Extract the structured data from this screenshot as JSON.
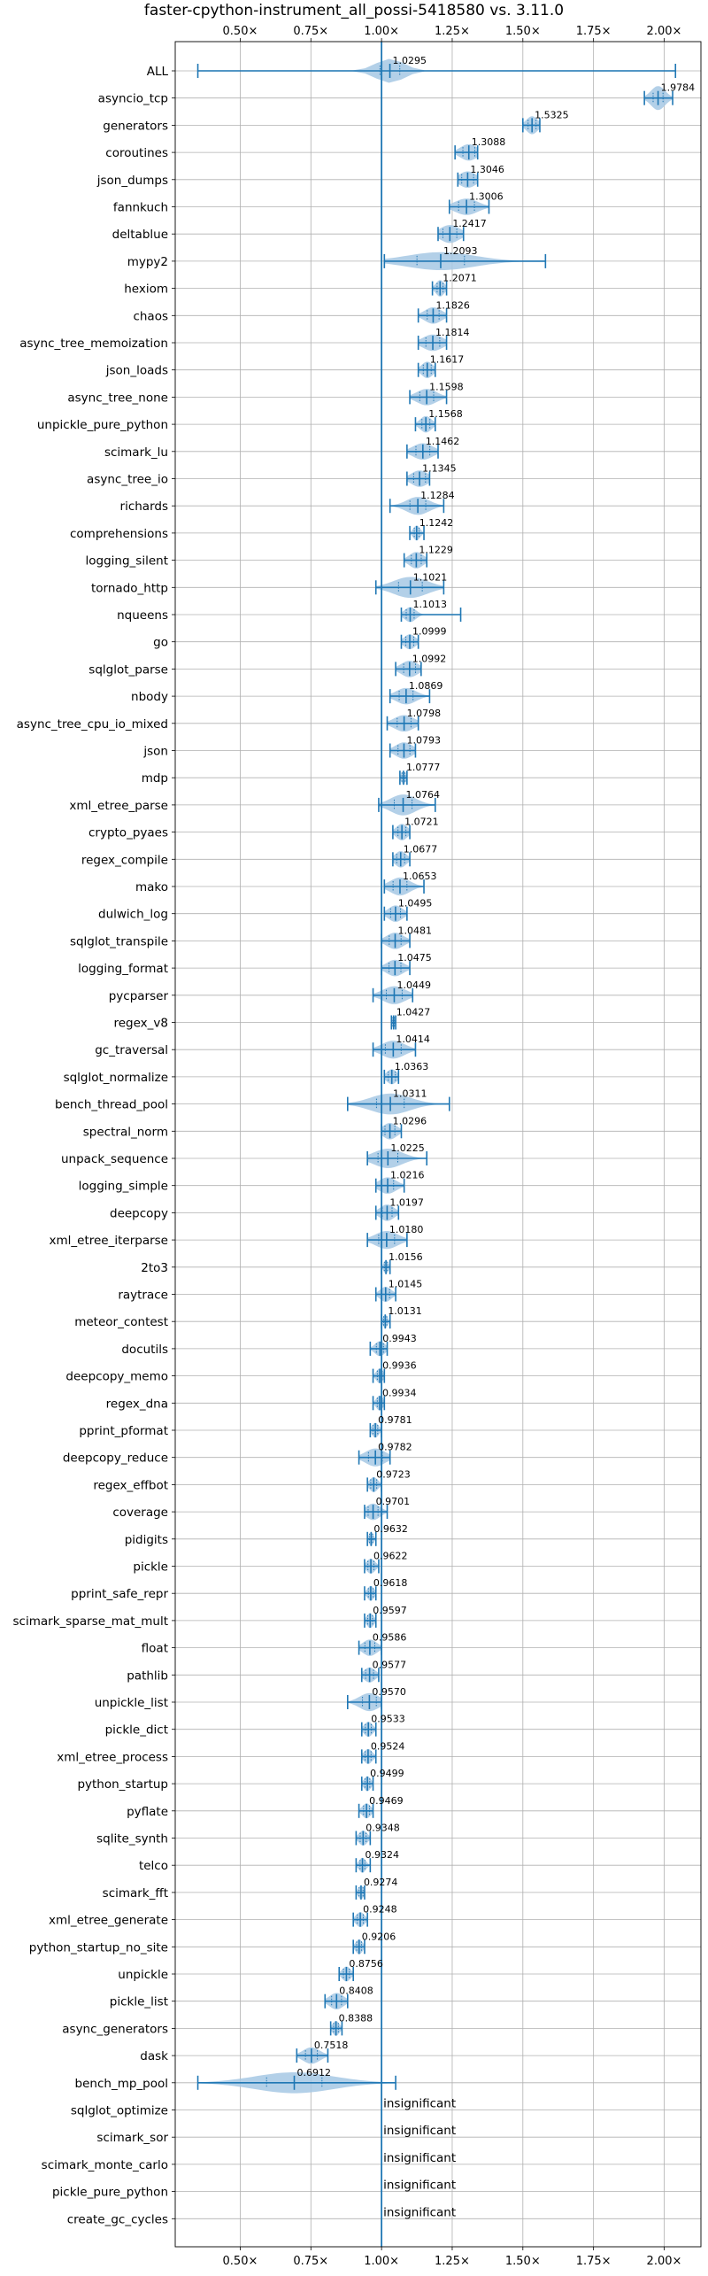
{
  "chart_data": {
    "type": "violin",
    "title": "faster-cpython-instrument_all_possi-5418580 vs. 3.11.0",
    "xlabel": "",
    "ylabel": "",
    "xlim": [
      0.27,
      2.13
    ],
    "xticks": [
      0.5,
      0.75,
      1.0,
      1.25,
      1.5,
      1.75,
      2.0
    ],
    "xtick_labels": [
      "0.50×",
      "0.75×",
      "1.00×",
      "1.25×",
      "1.50×",
      "1.75×",
      "2.00×"
    ],
    "reference_line": 1.0,
    "grid": true,
    "colors": {
      "accent": "#1f77b4",
      "violin": "#a6c8e4",
      "grid": "#b0b0b0"
    },
    "insignificant_label": "insignificant",
    "benchmarks": [
      {
        "name": "ALL",
        "value": 1.0295,
        "label": "1.0295",
        "min": 0.35,
        "max": 2.04,
        "spread": 0.05,
        "width": 0.8
      },
      {
        "name": "asyncio_tcp",
        "value": 1.9784,
        "label": "1.9784",
        "min": 1.93,
        "max": 2.03,
        "spread": 0.025,
        "width": 0.8
      },
      {
        "name": "generators",
        "value": 1.5325,
        "label": "1.5325",
        "min": 1.5,
        "max": 1.56,
        "spread": 0.02,
        "width": 0.6
      },
      {
        "name": "coroutines",
        "value": 1.3088,
        "label": "1.3088",
        "min": 1.26,
        "max": 1.34,
        "spread": 0.03,
        "width": 0.55
      },
      {
        "name": "json_dumps",
        "value": 1.3046,
        "label": "1.3046",
        "min": 1.27,
        "max": 1.34,
        "spread": 0.03,
        "width": 0.55
      },
      {
        "name": "fannkuch",
        "value": 1.3006,
        "label": "1.3006",
        "min": 1.24,
        "max": 1.38,
        "spread": 0.04,
        "width": 0.55
      },
      {
        "name": "deltablue",
        "value": 1.2417,
        "label": "1.2417",
        "min": 1.2,
        "max": 1.29,
        "spread": 0.035,
        "width": 0.6
      },
      {
        "name": "mypy2",
        "value": 1.2093,
        "label": "1.2093",
        "min": 1.01,
        "max": 1.58,
        "spread": 0.12,
        "width": 0.6
      },
      {
        "name": "hexiom",
        "value": 1.2071,
        "label": "1.2071",
        "min": 1.18,
        "max": 1.23,
        "spread": 0.015,
        "width": 0.55
      },
      {
        "name": "chaos",
        "value": 1.1826,
        "label": "1.1826",
        "min": 1.13,
        "max": 1.23,
        "spread": 0.03,
        "width": 0.55
      },
      {
        "name": "async_tree_memoization",
        "value": 1.1814,
        "label": "1.1814",
        "min": 1.13,
        "max": 1.23,
        "spread": 0.035,
        "width": 0.55
      },
      {
        "name": "json_loads",
        "value": 1.1617,
        "label": "1.1617",
        "min": 1.13,
        "max": 1.19,
        "spread": 0.02,
        "width": 0.55
      },
      {
        "name": "async_tree_none",
        "value": 1.1598,
        "label": "1.1598",
        "min": 1.1,
        "max": 1.23,
        "spread": 0.035,
        "width": 0.55
      },
      {
        "name": "unpickle_pure_python",
        "value": 1.1568,
        "label": "1.1568",
        "min": 1.12,
        "max": 1.19,
        "spread": 0.02,
        "width": 0.55
      },
      {
        "name": "scimark_lu",
        "value": 1.1462,
        "label": "1.1462",
        "min": 1.09,
        "max": 1.2,
        "spread": 0.035,
        "width": 0.55
      },
      {
        "name": "async_tree_io",
        "value": 1.1345,
        "label": "1.1345",
        "min": 1.09,
        "max": 1.17,
        "spread": 0.03,
        "width": 0.55
      },
      {
        "name": "richards",
        "value": 1.1284,
        "label": "1.1284",
        "min": 1.03,
        "max": 1.22,
        "spread": 0.04,
        "width": 0.6
      },
      {
        "name": "comprehensions",
        "value": 1.1242,
        "label": "1.1242",
        "min": 1.1,
        "max": 1.15,
        "spread": 0.012,
        "width": 0.5
      },
      {
        "name": "logging_silent",
        "value": 1.1229,
        "label": "1.1229",
        "min": 1.08,
        "max": 1.16,
        "spread": 0.025,
        "width": 0.55
      },
      {
        "name": "tornado_http",
        "value": 1.1021,
        "label": "1.1021",
        "min": 0.98,
        "max": 1.22,
        "spread": 0.06,
        "width": 0.7
      },
      {
        "name": "nqueens",
        "value": 1.1013,
        "label": "1.1013",
        "min": 1.07,
        "max": 1.28,
        "spread": 0.02,
        "width": 0.5
      },
      {
        "name": "go",
        "value": 1.0999,
        "label": "1.0999",
        "min": 1.07,
        "max": 1.13,
        "spread": 0.02,
        "width": 0.5
      },
      {
        "name": "sqlglot_parse",
        "value": 1.0992,
        "label": "1.0992",
        "min": 1.05,
        "max": 1.14,
        "spread": 0.03,
        "width": 0.55
      },
      {
        "name": "nbody",
        "value": 1.0869,
        "label": "1.0869",
        "min": 1.03,
        "max": 1.17,
        "spread": 0.035,
        "width": 0.55
      },
      {
        "name": "async_tree_cpu_io_mixed",
        "value": 1.0798,
        "label": "1.0798",
        "min": 1.02,
        "max": 1.13,
        "spread": 0.035,
        "width": 0.55
      },
      {
        "name": "json",
        "value": 1.0793,
        "label": "1.0793",
        "min": 1.03,
        "max": 1.12,
        "spread": 0.03,
        "width": 0.55
      },
      {
        "name": "mdp",
        "value": 1.0777,
        "label": "1.0777",
        "min": 1.065,
        "max": 1.09,
        "spread": 0.008,
        "width": 0.45
      },
      {
        "name": "xml_etree_parse",
        "value": 1.0764,
        "label": "1.0764",
        "min": 0.99,
        "max": 1.19,
        "spread": 0.045,
        "width": 0.7
      },
      {
        "name": "crypto_pyaes",
        "value": 1.0721,
        "label": "1.0721",
        "min": 1.04,
        "max": 1.1,
        "spread": 0.02,
        "width": 0.55
      },
      {
        "name": "regex_compile",
        "value": 1.0677,
        "label": "1.0677",
        "min": 1.04,
        "max": 1.1,
        "spread": 0.02,
        "width": 0.55
      },
      {
        "name": "mako",
        "value": 1.0653,
        "label": "1.0653",
        "min": 1.01,
        "max": 1.15,
        "spread": 0.035,
        "width": 0.6
      },
      {
        "name": "dulwich_log",
        "value": 1.0495,
        "label": "1.0495",
        "min": 1.01,
        "max": 1.09,
        "spread": 0.025,
        "width": 0.55
      },
      {
        "name": "sqlglot_transpile",
        "value": 1.0481,
        "label": "1.0481",
        "min": 1.0,
        "max": 1.1,
        "spread": 0.03,
        "width": 0.55
      },
      {
        "name": "logging_format",
        "value": 1.0475,
        "label": "1.0475",
        "min": 1.0,
        "max": 1.1,
        "spread": 0.03,
        "width": 0.55
      },
      {
        "name": "pycparser",
        "value": 1.0449,
        "label": "1.0449",
        "min": 0.97,
        "max": 1.11,
        "spread": 0.04,
        "width": 0.6
      },
      {
        "name": "regex_v8",
        "value": 1.0427,
        "label": "1.0427",
        "min": 1.035,
        "max": 1.05,
        "spread": 0.004,
        "width": 0.45
      },
      {
        "name": "gc_traversal",
        "value": 1.0414,
        "label": "1.0414",
        "min": 0.97,
        "max": 1.12,
        "spread": 0.04,
        "width": 0.6
      },
      {
        "name": "sqlglot_normalize",
        "value": 1.0363,
        "label": "1.0363",
        "min": 1.01,
        "max": 1.06,
        "spread": 0.018,
        "width": 0.5
      },
      {
        "name": "bench_thread_pool",
        "value": 1.0311,
        "label": "1.0311",
        "min": 0.88,
        "max": 1.24,
        "spread": 0.07,
        "width": 0.7
      },
      {
        "name": "spectral_norm",
        "value": 1.0296,
        "label": "1.0296",
        "min": 1.0,
        "max": 1.07,
        "spread": 0.025,
        "width": 0.55
      },
      {
        "name": "unpack_sequence",
        "value": 1.0225,
        "label": "1.0225",
        "min": 0.95,
        "max": 1.16,
        "spread": 0.05,
        "width": 0.65
      },
      {
        "name": "logging_simple",
        "value": 1.0216,
        "label": "1.0216",
        "min": 0.98,
        "max": 1.08,
        "spread": 0.03,
        "width": 0.55
      },
      {
        "name": "deepcopy",
        "value": 1.0197,
        "label": "1.0197",
        "min": 0.98,
        "max": 1.06,
        "spread": 0.025,
        "width": 0.55
      },
      {
        "name": "xml_etree_iterparse",
        "value": 1.018,
        "label": "1.0180",
        "min": 0.95,
        "max": 1.09,
        "spread": 0.04,
        "width": 0.6
      },
      {
        "name": "2to3",
        "value": 1.0156,
        "label": "1.0156",
        "min": 1.0,
        "max": 1.03,
        "spread": 0.008,
        "width": 0.45
      },
      {
        "name": "raytrace",
        "value": 1.0145,
        "label": "1.0145",
        "min": 0.98,
        "max": 1.05,
        "spread": 0.02,
        "width": 0.5
      },
      {
        "name": "meteor_contest",
        "value": 1.0131,
        "label": "1.0131",
        "min": 1.0,
        "max": 1.03,
        "spread": 0.008,
        "width": 0.45
      },
      {
        "name": "docutils",
        "value": 0.9943,
        "label": "0.9943",
        "min": 0.96,
        "max": 1.02,
        "spread": 0.018,
        "width": 0.5
      },
      {
        "name": "deepcopy_memo",
        "value": 0.9936,
        "label": "0.9936",
        "min": 0.97,
        "max": 1.01,
        "spread": 0.012,
        "width": 0.5
      },
      {
        "name": "regex_dna",
        "value": 0.9934,
        "label": "0.9934",
        "min": 0.97,
        "max": 1.01,
        "spread": 0.012,
        "width": 0.5
      },
      {
        "name": "pprint_pformat",
        "value": 0.9781,
        "label": "0.9781",
        "min": 0.96,
        "max": 1.0,
        "spread": 0.012,
        "width": 0.5
      },
      {
        "name": "deepcopy_reduce",
        "value": 0.9782,
        "label": "0.9782",
        "min": 0.92,
        "max": 1.03,
        "spread": 0.035,
        "width": 0.6
      },
      {
        "name": "regex_effbot",
        "value": 0.9723,
        "label": "0.9723",
        "min": 0.95,
        "max": 1.0,
        "spread": 0.015,
        "width": 0.5
      },
      {
        "name": "coverage",
        "value": 0.9701,
        "label": "0.9701",
        "min": 0.94,
        "max": 1.02,
        "spread": 0.025,
        "width": 0.55
      },
      {
        "name": "pidigits",
        "value": 0.9632,
        "label": "0.9632",
        "min": 0.95,
        "max": 0.98,
        "spread": 0.008,
        "width": 0.45
      },
      {
        "name": "pickle",
        "value": 0.9622,
        "label": "0.9622",
        "min": 0.94,
        "max": 0.99,
        "spread": 0.015,
        "width": 0.5
      },
      {
        "name": "pprint_safe_repr",
        "value": 0.9618,
        "label": "0.9618",
        "min": 0.94,
        "max": 0.98,
        "spread": 0.012,
        "width": 0.5
      },
      {
        "name": "scimark_sparse_mat_mult",
        "value": 0.9597,
        "label": "0.9597",
        "min": 0.94,
        "max": 0.98,
        "spread": 0.012,
        "width": 0.5
      },
      {
        "name": "float",
        "value": 0.9586,
        "label": "0.9586",
        "min": 0.92,
        "max": 1.0,
        "spread": 0.025,
        "width": 0.55
      },
      {
        "name": "pathlib",
        "value": 0.9577,
        "label": "0.9577",
        "min": 0.93,
        "max": 0.99,
        "spread": 0.02,
        "width": 0.5
      },
      {
        "name": "unpickle_list",
        "value": 0.957,
        "label": "0.9570",
        "min": 0.88,
        "max": 1.0,
        "spread": 0.035,
        "width": 0.6
      },
      {
        "name": "pickle_dict",
        "value": 0.9533,
        "label": "0.9533",
        "min": 0.93,
        "max": 0.98,
        "spread": 0.015,
        "width": 0.5
      },
      {
        "name": "xml_etree_process",
        "value": 0.9524,
        "label": "0.9524",
        "min": 0.93,
        "max": 0.98,
        "spread": 0.015,
        "width": 0.5
      },
      {
        "name": "python_startup",
        "value": 0.9499,
        "label": "0.9499",
        "min": 0.93,
        "max": 0.97,
        "spread": 0.012,
        "width": 0.5
      },
      {
        "name": "pyflate",
        "value": 0.9469,
        "label": "0.9469",
        "min": 0.92,
        "max": 0.97,
        "spread": 0.015,
        "width": 0.5
      },
      {
        "name": "sqlite_synth",
        "value": 0.9348,
        "label": "0.9348",
        "min": 0.91,
        "max": 0.96,
        "spread": 0.015,
        "width": 0.5
      },
      {
        "name": "telco",
        "value": 0.9324,
        "label": "0.9324",
        "min": 0.91,
        "max": 0.96,
        "spread": 0.012,
        "width": 0.5
      },
      {
        "name": "scimark_fft",
        "value": 0.9274,
        "label": "0.9274",
        "min": 0.91,
        "max": 0.94,
        "spread": 0.01,
        "width": 0.45
      },
      {
        "name": "xml_etree_generate",
        "value": 0.9248,
        "label": "0.9248",
        "min": 0.9,
        "max": 0.95,
        "spread": 0.015,
        "width": 0.5
      },
      {
        "name": "python_startup_no_site",
        "value": 0.9206,
        "label": "0.9206",
        "min": 0.9,
        "max": 0.94,
        "spread": 0.012,
        "width": 0.5
      },
      {
        "name": "unpickle",
        "value": 0.8756,
        "label": "0.8756",
        "min": 0.85,
        "max": 0.9,
        "spread": 0.015,
        "width": 0.5
      },
      {
        "name": "pickle_list",
        "value": 0.8408,
        "label": "0.8408",
        "min": 0.8,
        "max": 0.88,
        "spread": 0.025,
        "width": 0.55
      },
      {
        "name": "async_generators",
        "value": 0.8388,
        "label": "0.8388",
        "min": 0.82,
        "max": 0.86,
        "spread": 0.012,
        "width": 0.5
      },
      {
        "name": "dask",
        "value": 0.7518,
        "label": "0.7518",
        "min": 0.7,
        "max": 0.81,
        "spread": 0.03,
        "width": 0.55
      },
      {
        "name": "bench_mp_pool",
        "value": 0.6912,
        "label": "0.6912",
        "min": 0.35,
        "max": 1.05,
        "spread": 0.14,
        "width": 0.7
      },
      {
        "name": "sqlglot_optimize",
        "value": null,
        "label": "",
        "insignificant": true
      },
      {
        "name": "scimark_sor",
        "value": null,
        "label": "",
        "insignificant": true
      },
      {
        "name": "scimark_monte_carlo",
        "value": null,
        "label": "",
        "insignificant": true
      },
      {
        "name": "pickle_pure_python",
        "value": null,
        "label": "",
        "insignificant": true
      },
      {
        "name": "create_gc_cycles",
        "value": null,
        "label": "",
        "insignificant": true
      }
    ]
  }
}
